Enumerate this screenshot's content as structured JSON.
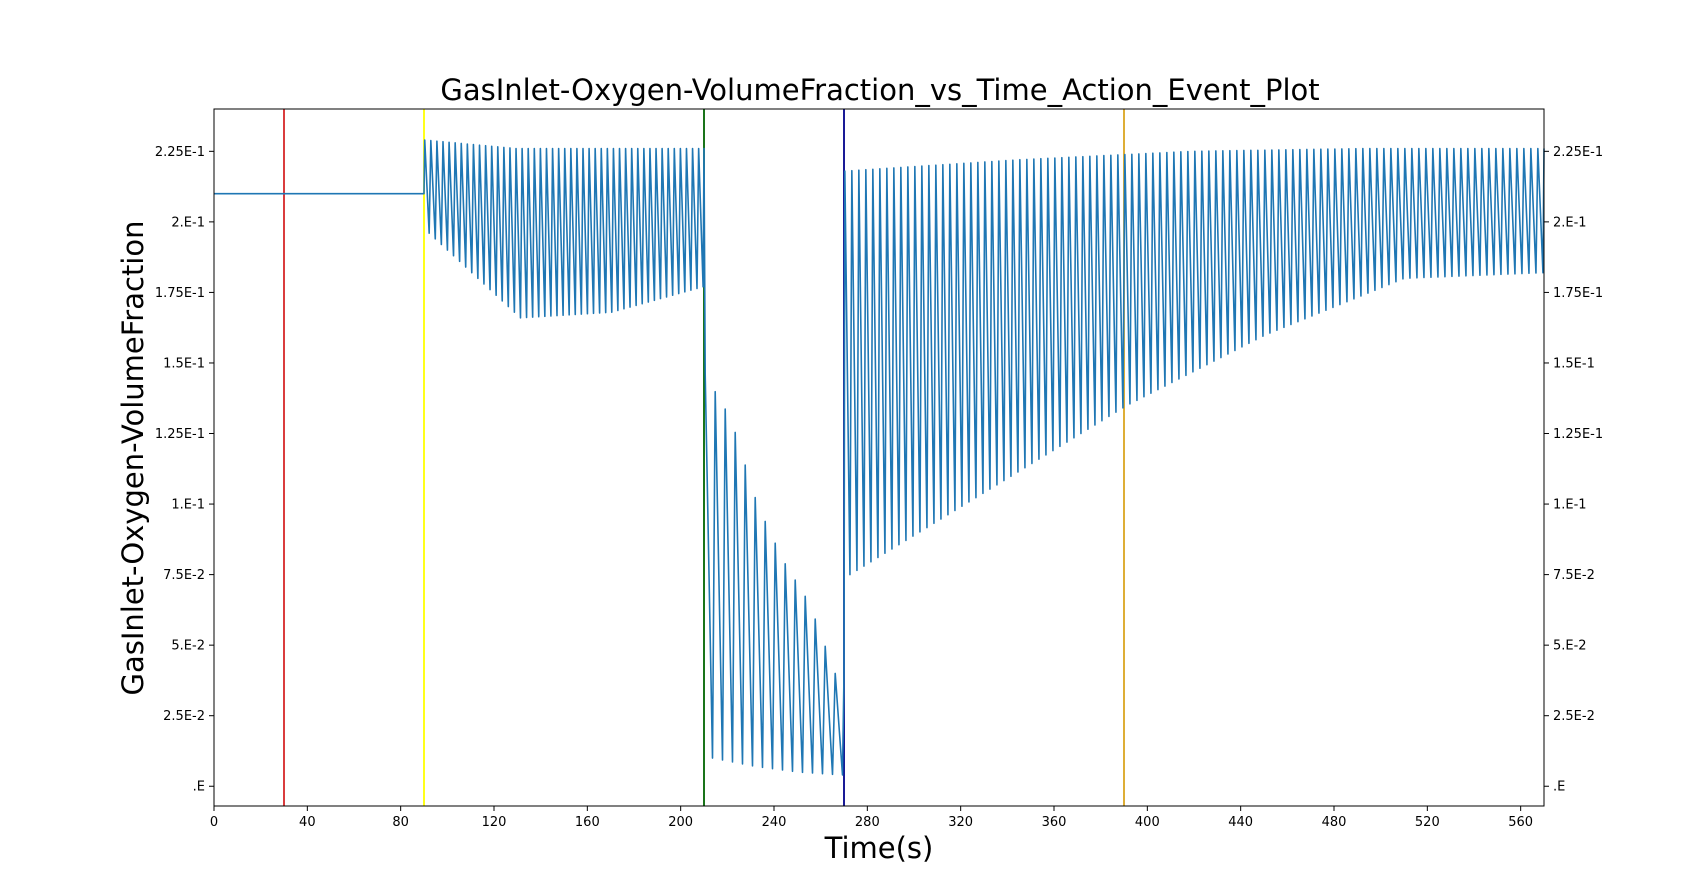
{
  "chart_data": {
    "type": "line",
    "title": "GasInlet-Oxygen-VolumeFraction_vs_Time_Action_Event_Plot",
    "xlabel": "Time(s)",
    "ylabel": "GasInlet-Oxygen-VolumeFraction",
    "xlim": [
      0,
      570
    ],
    "ylim": [
      -0.007,
      0.24
    ],
    "x_ticks": [
      0,
      40,
      80,
      120,
      160,
      200,
      240,
      280,
      320,
      360,
      400,
      440,
      480,
      520,
      560
    ],
    "x_tick_labels": [
      "0",
      "40",
      "80",
      "120",
      "160",
      "200",
      "240",
      "280",
      "320",
      "360",
      "400",
      "440",
      "480",
      "520",
      "560"
    ],
    "y_ticks": [
      0,
      0.025,
      0.05,
      0.075,
      0.1,
      0.125,
      0.15,
      0.175,
      0.2,
      0.225
    ],
    "y_tick_labels": [
      ".E",
      "2.5E-2",
      "5.E-2",
      "7.5E-2",
      "1.E-1",
      "1.25E-1",
      "1.5E-1",
      "1.75E-1",
      "2.E-1",
      "2.25E-1"
    ],
    "right_axis_duplicate": true,
    "grid": false,
    "series": [
      {
        "color": "#1f77b4",
        "segments": [
          {
            "type": "constant",
            "x": [
              0,
              90
            ],
            "value": 0.21
          },
          {
            "type": "oscillation",
            "x": [
              90,
              210
            ],
            "period": 2.6,
            "peaks": [
              0.229,
              0.226,
              0.226,
              0.226
            ],
            "troughs": [
              0.196,
              0.166,
              0.168,
              0.177
            ]
          },
          {
            "type": "oscillation",
            "x": [
              210,
              270
            ],
            "period": 4.3,
            "peaks": [
              0.146,
              0.13,
              0.1,
              0.08,
              0.065,
              0.04
            ],
            "troughs": [
              0.01,
              0.007,
              0.005,
              0.004
            ]
          },
          {
            "type": "oscillation",
            "x": [
              270,
              570
            ],
            "period": 3.0,
            "peaks": [
              0.218,
              0.222,
              0.225,
              0.226,
              0.226
            ],
            "troughs": [
              0.075,
              0.105,
              0.135,
              0.16,
              0.18,
              0.182
            ]
          }
        ]
      }
    ],
    "event_lines": [
      {
        "x": 30,
        "color": "#d62728"
      },
      {
        "x": 90,
        "color": "#ffff00"
      },
      {
        "x": 210,
        "color": "#006400"
      },
      {
        "x": 270,
        "color": "#00008b"
      },
      {
        "x": 390,
        "color": "#daa520"
      }
    ]
  }
}
